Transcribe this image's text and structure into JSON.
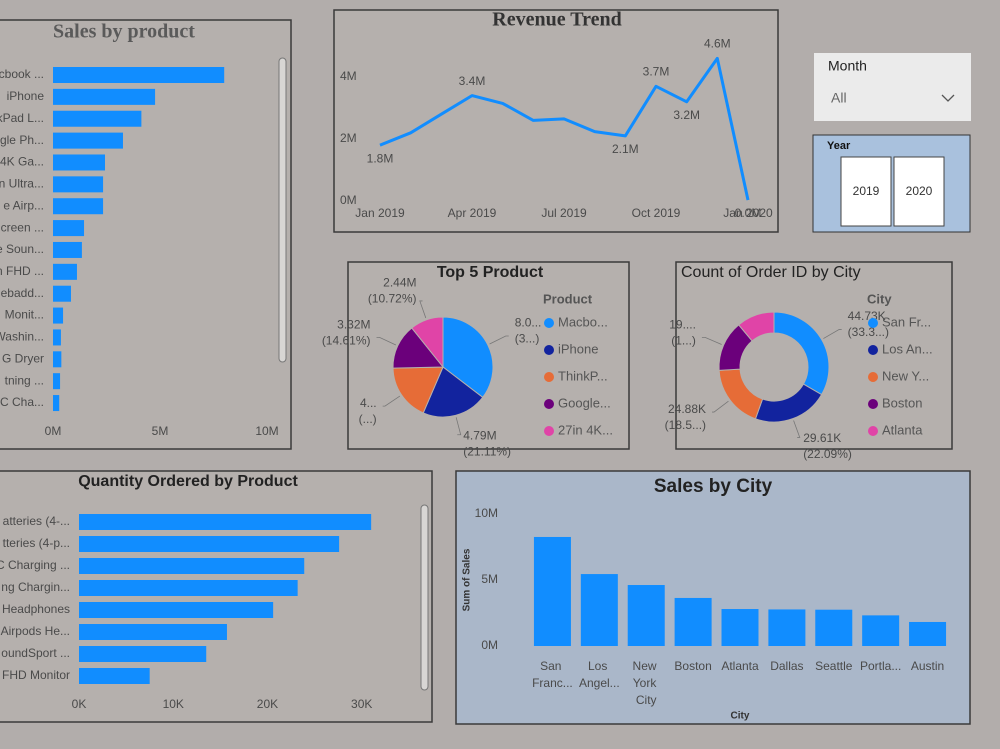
{
  "chart_data": [
    {
      "type": "barh",
      "title": "Sales by product",
      "categories": [
        "acbook ...",
        "iPhone",
        "kPad L...",
        "gle Ph...",
        "4K Ga...",
        "n Ultra...",
        "e Airp...",
        "creen ...",
        "e Soun...",
        "n FHD ...",
        "ebadd...",
        "Monit...",
        "Washin...",
        "G Dryer",
        "tning ...",
        "C Cha..."
      ],
      "values": [
        8.0,
        4.77,
        4.13,
        3.27,
        2.43,
        2.34,
        2.34,
        1.45,
        1.35,
        1.12,
        0.84,
        0.47,
        0.37,
        0.39,
        0.33,
        0.29
      ],
      "color": "#118DFF",
      "xlim": [
        0,
        10.5
      ],
      "xticks": [
        {
          "value": 0,
          "label": "0M"
        },
        {
          "value": 5,
          "label": "5M"
        },
        {
          "value": 10,
          "label": "10M"
        }
      ]
    },
    {
      "type": "line",
      "title": "Revenue Trend",
      "categories": [
        "Jan 2019",
        null,
        null,
        "Apr 2019",
        null,
        null,
        "Jul 2019",
        null,
        null,
        "Oct 2019",
        null,
        null,
        "Jan 2020"
      ],
      "values": [
        1.8,
        2.2,
        2.8,
        3.4,
        3.15,
        2.6,
        2.65,
        2.24,
        2.1,
        3.7,
        3.2,
        4.6,
        0.03
      ],
      "value_labels": [
        "1.8M",
        null,
        null,
        "3.4M",
        null,
        null,
        null,
        null,
        "2.1M",
        "3.7M",
        "3.2M",
        "4.6M",
        "0.0M"
      ],
      "color": "#118DFF",
      "ylim": [
        0,
        4.7
      ],
      "yticks": [
        {
          "value": 0,
          "label": "0M"
        },
        {
          "value": 2,
          "label": "2M"
        },
        {
          "value": 4,
          "label": "4M"
        }
      ]
    },
    {
      "type": "pie",
      "title": "Top 5 Product",
      "legend_title": "Product",
      "categories": [
        "Macbo...",
        "iPhone",
        "ThinkP...",
        "Google...",
        "27in 4K..."
      ],
      "values": [
        8.04,
        4.79,
        4.13,
        3.32,
        2.44
      ],
      "value_labels": [
        "8.0...",
        "4.79M",
        "4...",
        "3.32M",
        "2.44M"
      ],
      "percent_labels": [
        "(3...)",
        "(21.11%)",
        "(...)",
        "(14.61%)",
        "(10.72%)"
      ],
      "colors": [
        "#118DFF",
        "#12239E",
        "#E66C37",
        "#6B007B",
        "#E044A7"
      ]
    },
    {
      "type": "donut",
      "title": "Count of Order ID by City",
      "legend_title": "City",
      "categories": [
        "San Fr...",
        "Los An...",
        "New Y...",
        "Boston",
        "Atlanta"
      ],
      "values": [
        44.73,
        29.61,
        24.88,
        19.93,
        14.88
      ],
      "value_labels": [
        "44.73K",
        "29.61K",
        "24.88K",
        "19....",
        null
      ],
      "percent_labels": [
        "(33.3...)",
        "(22.09%)",
        "(18.5...)",
        "(1...)",
        null
      ],
      "colors": [
        "#118DFF",
        "#12239E",
        "#E66C37",
        "#6B007B",
        "#E044A7"
      ]
    },
    {
      "type": "barh",
      "title": "Quantity Ordered by Product",
      "categories": [
        "atteries (4-...",
        "tteries (4-p...",
        "C Charging ...",
        "ng Chargin...",
        "Headphones",
        "Airpods He...",
        "oundSport ...",
        "FHD Monitor"
      ],
      "values": [
        31.0,
        27.6,
        23.9,
        23.2,
        20.6,
        15.7,
        13.5,
        7.5
      ],
      "color": "#118DFF",
      "xlim": [
        0,
        33
      ],
      "xticks": [
        {
          "value": 0,
          "label": "0K"
        },
        {
          "value": 10,
          "label": "10K"
        },
        {
          "value": 20,
          "label": "20K"
        },
        {
          "value": 30,
          "label": "30K"
        }
      ]
    },
    {
      "type": "bar",
      "title": "Sales by City",
      "x_label": "City",
      "y_label": "Sum of Sales",
      "categories": [
        "San Franc...",
        "Los Angel...",
        "New York City",
        "Boston",
        "Atlanta",
        "Dallas",
        "Seattle",
        "Portla...",
        "Austin"
      ],
      "values": [
        8.26,
        5.45,
        4.62,
        3.64,
        2.8,
        2.77,
        2.75,
        2.32,
        1.82
      ],
      "color": "#118DFF",
      "ylim": [
        0,
        10.5
      ],
      "yticks": [
        {
          "value": 0,
          "label": "0M"
        },
        {
          "value": 5,
          "label": "5M"
        },
        {
          "value": 10,
          "label": "10M"
        }
      ]
    }
  ],
  "slicers": {
    "month": {
      "title": "Month",
      "value": "All"
    },
    "year": {
      "title": "Year",
      "options": [
        "2019",
        "2020"
      ]
    }
  }
}
